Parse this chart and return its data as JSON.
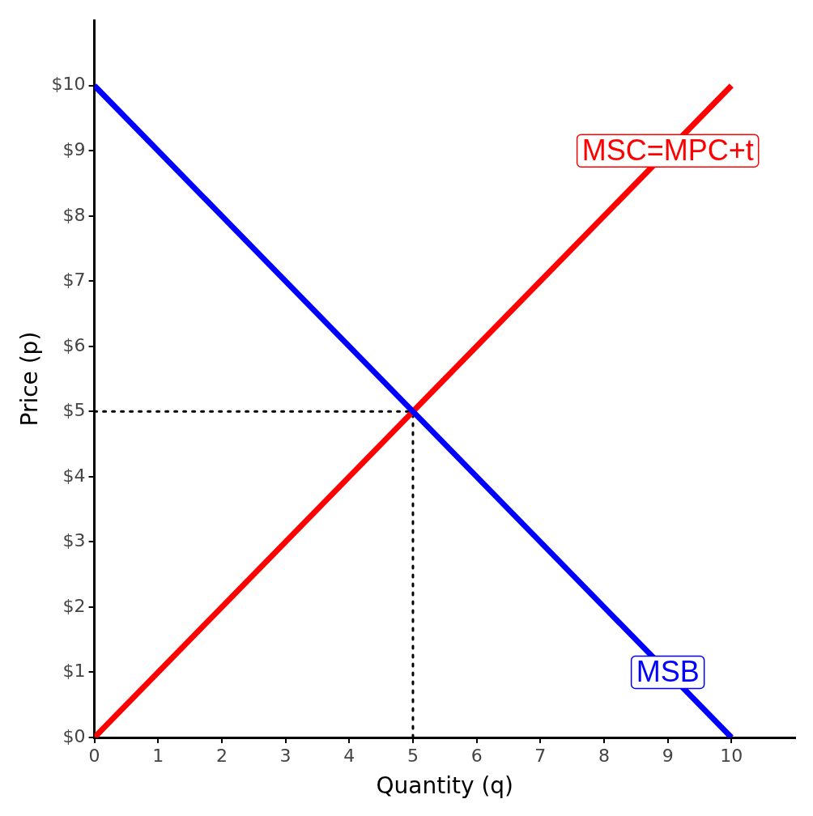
{
  "chart_data": {
    "type": "line",
    "xlabel": "Quantity (q)",
    "ylabel": "Price (p)",
    "xlim": [
      0,
      11
    ],
    "xticks": [
      0,
      1,
      2,
      3,
      4,
      5,
      6,
      7,
      8,
      9,
      10
    ],
    "ylim": [
      0,
      11
    ],
    "yticks": [
      {
        "value": 0,
        "label": "$0"
      },
      {
        "value": 1,
        "label": "$1"
      },
      {
        "value": 2,
        "label": "$2"
      },
      {
        "value": 3,
        "label": "$3"
      },
      {
        "value": 4,
        "label": "$4"
      },
      {
        "value": 5,
        "label": "$5"
      },
      {
        "value": 6,
        "label": "$6"
      },
      {
        "value": 7,
        "label": "$7"
      },
      {
        "value": 8,
        "label": "$8"
      },
      {
        "value": 9,
        "label": "$9"
      },
      {
        "value": 10,
        "label": "$10"
      }
    ],
    "grid": false,
    "legend": false,
    "marker": "none",
    "series": [
      {
        "name": "MSB",
        "color": "#0000ff",
        "x": [
          0,
          10
        ],
        "values": [
          10,
          0
        ]
      },
      {
        "name": "MSC=MPC+t",
        "color": "#ff0000",
        "x": [
          0,
          10
        ],
        "values": [
          0,
          10
        ]
      },
      {
        "color": "#000000",
        "line_style": "dotted",
        "x": [
          0,
          5
        ],
        "values": [
          5,
          5
        ]
      },
      {
        "color": "#000000",
        "line_style": "dotted",
        "x": [
          5,
          5
        ],
        "values": [
          0,
          5
        ]
      }
    ]
  }
}
